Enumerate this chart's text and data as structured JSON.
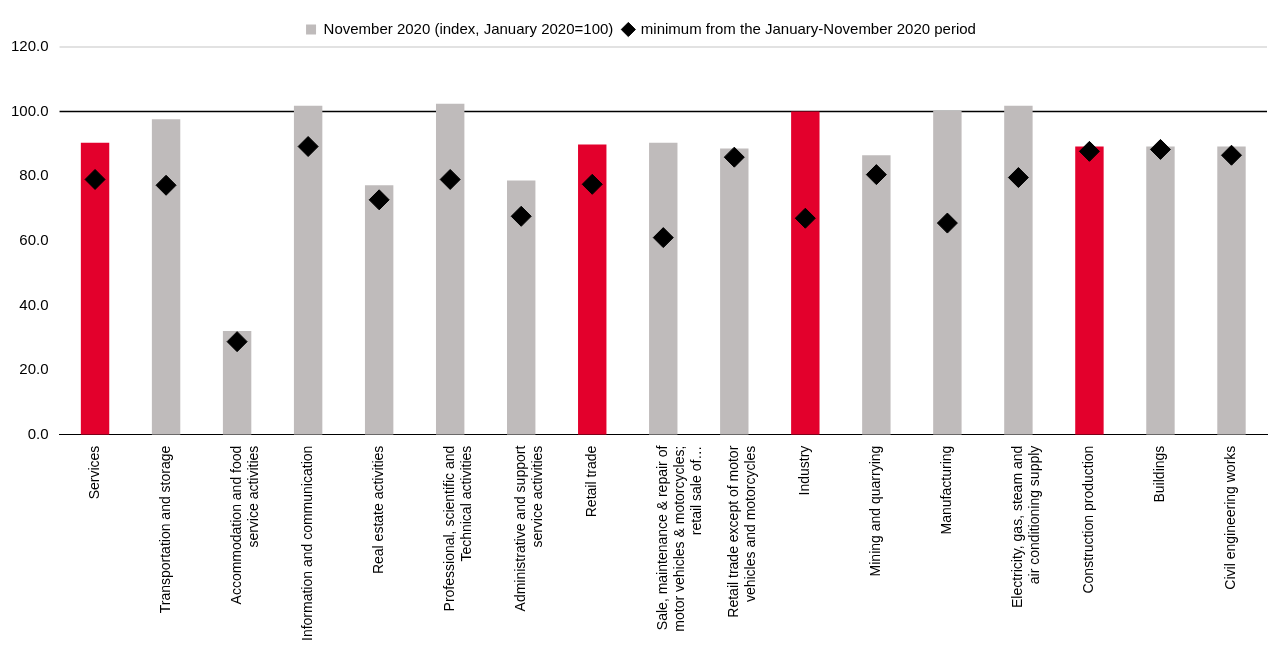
{
  "chart_data": {
    "type": "bar",
    "categories": [
      "Services",
      "Transportation and storage",
      "Accommodation and food service activities",
      "Information and communication",
      "Real estate activities",
      "Professional, scientific and Technical activities",
      "Administrative and support service activities",
      "Retail trade",
      "Sale, maintenance & repair of motor vehicles & motorcycles; retail sale of…",
      "Retail trade except of motor vehicles and motorcycles",
      "Industry",
      "Mining and quarrying",
      "Manufacturing",
      "Electricity, gas, steam and air conditioning supply",
      "Construction production",
      "Buildings",
      "Civil engineering works"
    ],
    "series": [
      {
        "name": "November 2020 (index, January 2020=100)",
        "color": "#bfbbbb",
        "colors": [
          "#e3002c",
          "#bfbbbb",
          "#bfbbbb",
          "#bfbbbb",
          "#bfbbbb",
          "#bfbbbb",
          "#bfbbbb",
          "#e3002c",
          "#bfbbbb",
          "#bfbbbb",
          "#e3002c",
          "#bfbbbb",
          "#bfbbbb",
          "#bfbbbb",
          "#e3002c",
          "#bfbbbb",
          "#bfbbbb"
        ],
        "values": [
          90.4,
          97.6,
          32.1,
          101.8,
          77.2,
          102.4,
          78.7,
          89.8,
          90.4,
          88.6,
          100.0,
          86.5,
          100.2,
          101.8,
          89.2,
          89.2,
          89.2
        ]
      },
      {
        "name": "minimum from the January-November 2020 period",
        "type": "scatter",
        "color": "#000000",
        "marker": "diamond",
        "values": [
          79.0,
          77.2,
          28.8,
          89.2,
          72.7,
          79.0,
          67.6,
          77.5,
          61.0,
          85.9,
          67.0,
          80.5,
          65.5,
          79.6,
          87.7,
          88.3,
          86.5
        ]
      }
    ],
    "ylim": [
      0,
      120
    ],
    "yticks": [
      {
        "value": 0,
        "label": "0.0"
      },
      {
        "value": 20,
        "label": "20.0"
      },
      {
        "value": 40,
        "label": "40.0"
      },
      {
        "value": 60,
        "label": "60.0"
      },
      {
        "value": 80,
        "label": "80.0"
      },
      {
        "value": 100,
        "label": "100.0"
      },
      {
        "value": 120,
        "label": "120.0"
      }
    ],
    "grid": false,
    "legend": "top",
    "ref_lines": [
      {
        "axis": "y",
        "value": 120,
        "color": "#d9d9d9"
      },
      {
        "axis": "y",
        "value": 100,
        "color": "#000000"
      }
    ]
  }
}
